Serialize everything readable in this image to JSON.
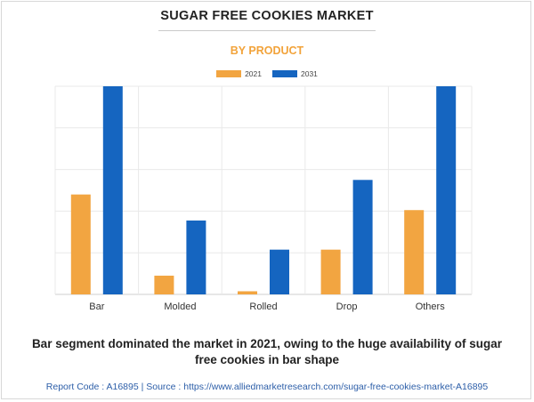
{
  "title": "SUGAR FREE COOKIES MARKET",
  "subtitle": "BY PRODUCT",
  "caption": "Bar segment dominated the market in 2021, owing to the huge availability of sugar free cookies in bar shape",
  "footer": "Report Code : A16895  |  Source : https://www.alliedmarketresearch.com/sugar-free-cookies-market-A16895",
  "colors": {
    "2021": "#f2a541",
    "2031": "#1565c0"
  },
  "chart_data": {
    "type": "bar",
    "title": "BY PRODUCT",
    "xlabel": "",
    "ylabel": "",
    "categories": [
      "Bar",
      "Molded",
      "Rolled",
      "Drop",
      "Others"
    ],
    "series": [
      {
        "name": "2021",
        "values": [
          48,
          9,
          1.5,
          21.5,
          40.5
        ]
      },
      {
        "name": "2031",
        "values": [
          100,
          35.5,
          21.5,
          55,
          100
        ]
      }
    ],
    "ylim": [
      0,
      100
    ],
    "grid": true,
    "legend_position": "top-center"
  }
}
